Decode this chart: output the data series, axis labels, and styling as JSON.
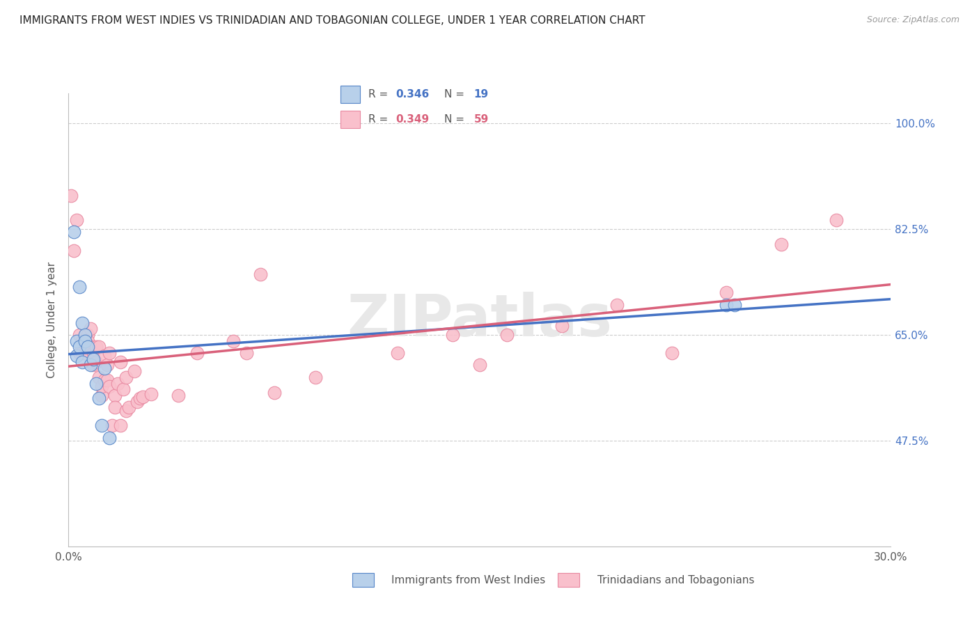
{
  "title": "IMMIGRANTS FROM WEST INDIES VS TRINIDADIAN AND TOBAGONIAN COLLEGE, UNDER 1 YEAR CORRELATION CHART",
  "source": "Source: ZipAtlas.com",
  "ylabel": "College, Under 1 year",
  "xlim": [
    0.0,
    0.3
  ],
  "ylim": [
    0.3,
    1.05
  ],
  "yticks": [
    0.475,
    0.65,
    0.825,
    1.0
  ],
  "ytick_labels": [
    "47.5%",
    "65.0%",
    "82.5%",
    "100.0%"
  ],
  "xtick_positions": [
    0.0,
    0.3
  ],
  "xtick_labels": [
    "0.0%",
    "30.0%"
  ],
  "blue_R": "0.346",
  "blue_N": "19",
  "pink_R": "0.349",
  "pink_N": "59",
  "blue_face_color": "#b8d0ea",
  "pink_face_color": "#f9c0cc",
  "blue_edge_color": "#5585c8",
  "pink_edge_color": "#e888a0",
  "blue_line_color": "#4472c4",
  "pink_line_color": "#d9607a",
  "watermark": "ZIPatlas",
  "legend_label_blue": "Immigrants from West Indies",
  "legend_label_pink": "Trinidadians and Tobagonians",
  "blue_x": [
    0.002,
    0.004,
    0.003,
    0.003,
    0.004,
    0.005,
    0.005,
    0.006,
    0.006,
    0.007,
    0.008,
    0.009,
    0.01,
    0.011,
    0.012,
    0.013,
    0.015,
    0.24,
    0.243
  ],
  "blue_y": [
    0.82,
    0.73,
    0.64,
    0.615,
    0.63,
    0.605,
    0.67,
    0.65,
    0.64,
    0.63,
    0.6,
    0.61,
    0.57,
    0.545,
    0.5,
    0.595,
    0.48,
    0.7,
    0.7
  ],
  "pink_x": [
    0.001,
    0.002,
    0.003,
    0.004,
    0.004,
    0.005,
    0.005,
    0.006,
    0.006,
    0.007,
    0.007,
    0.008,
    0.008,
    0.009,
    0.009,
    0.01,
    0.01,
    0.011,
    0.011,
    0.012,
    0.012,
    0.013,
    0.013,
    0.014,
    0.014,
    0.015,
    0.015,
    0.016,
    0.017,
    0.017,
    0.018,
    0.019,
    0.019,
    0.02,
    0.021,
    0.021,
    0.022,
    0.024,
    0.025,
    0.026,
    0.027,
    0.03,
    0.04,
    0.047,
    0.06,
    0.065,
    0.07,
    0.075,
    0.09,
    0.12,
    0.14,
    0.15,
    0.16,
    0.18,
    0.2,
    0.22,
    0.24,
    0.26,
    0.28
  ],
  "pink_y": [
    0.88,
    0.79,
    0.84,
    0.65,
    0.62,
    0.64,
    0.62,
    0.64,
    0.62,
    0.65,
    0.64,
    0.66,
    0.63,
    0.6,
    0.62,
    0.605,
    0.63,
    0.58,
    0.63,
    0.55,
    0.565,
    0.575,
    0.615,
    0.6,
    0.575,
    0.565,
    0.62,
    0.5,
    0.55,
    0.53,
    0.57,
    0.5,
    0.605,
    0.56,
    0.58,
    0.525,
    0.53,
    0.59,
    0.54,
    0.545,
    0.548,
    0.552,
    0.55,
    0.62,
    0.64,
    0.62,
    0.75,
    0.555,
    0.58,
    0.62,
    0.65,
    0.6,
    0.65,
    0.665,
    0.7,
    0.62,
    0.72,
    0.8,
    0.84
  ]
}
